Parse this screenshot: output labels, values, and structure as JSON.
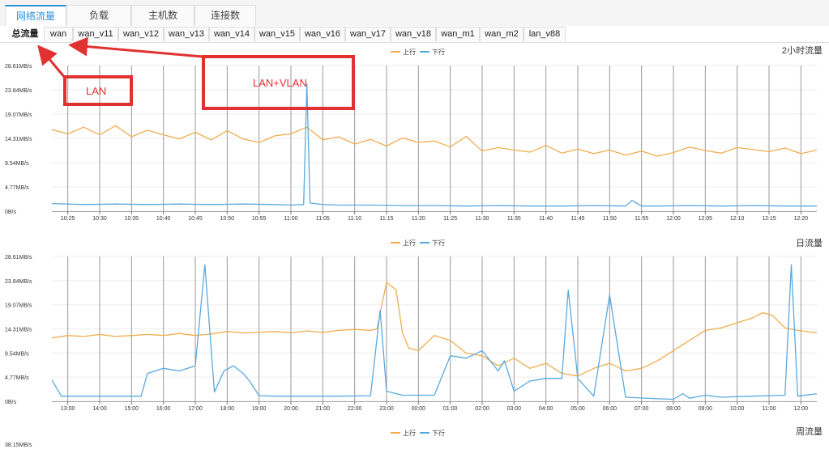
{
  "top_tabs": [
    "网络流量",
    "负载",
    "主机数",
    "连接数"
  ],
  "sub_tabs": [
    "总流量",
    "wan",
    "wan_v11",
    "wan_v12",
    "wan_v13",
    "wan_v14",
    "wan_v15",
    "wan_v16",
    "wan_v17",
    "wan_v18",
    "wan_m1",
    "wan_m2",
    "lan_v88"
  ],
  "annotations": {
    "lan_label": "LAN",
    "lan_vlan_label": "LAN+VLAN"
  },
  "legend": {
    "up": "上行",
    "down": "下行"
  },
  "colors": {
    "up": "#f0ad4e",
    "down": "#5aa9de",
    "active_tab": "#2b8fd6",
    "annotation": "#e23131",
    "grid": "#999999"
  },
  "chart_data": [
    {
      "type": "line",
      "title": "2小时流量",
      "y_ticks": [
        "28.61MB/s",
        "23.84MB/s",
        "19.07MB/s",
        "14.31MB/s",
        "9.54MB/s",
        "4.77MB/s",
        "0B/s"
      ],
      "y_tick_values": [
        28.61,
        23.84,
        19.07,
        14.31,
        9.54,
        4.77,
        0
      ],
      "ylim": [
        0,
        28.61
      ],
      "x_ticks": [
        "10:25",
        "10:30",
        "10:35",
        "10:40",
        "10:45",
        "10:50",
        "10:55",
        "11:00",
        "11:05",
        "11:10",
        "11:15",
        "11:20",
        "11:25",
        "11:30",
        "11:35",
        "11:40",
        "11:45",
        "11:50",
        "11:55",
        "12:00",
        "12:05",
        "12:10",
        "12:15",
        "12:20"
      ],
      "x_range": [
        0,
        24
      ],
      "series": [
        {
          "name": "上行",
          "x": [
            0,
            0.5,
            1,
            1.5,
            2,
            2.5,
            3,
            3.5,
            4,
            4.5,
            5,
            5.5,
            6,
            6.5,
            7,
            7.5,
            8,
            8.5,
            9,
            9.5,
            10,
            10.5,
            11,
            11.5,
            12,
            12.5,
            13,
            13.5,
            14,
            14.5,
            15,
            15.5,
            16,
            16.5,
            17,
            17.5,
            18,
            18.5,
            19,
            19.5,
            20,
            20.5,
            21,
            21.5,
            22,
            22.5,
            23,
            23.5,
            24
          ],
          "values": [
            16.0,
            15.2,
            16.5,
            15.0,
            16.8,
            14.6,
            15.9,
            15.0,
            14.2,
            15.5,
            14.0,
            15.8,
            14.2,
            13.5,
            14.8,
            15.2,
            16.5,
            14.0,
            14.6,
            13.2,
            14.1,
            12.8,
            14.4,
            13.5,
            13.8,
            12.6,
            14.7,
            11.8,
            12.5,
            12.0,
            11.6,
            12.9,
            11.4,
            12.2,
            11.3,
            12.0,
            11.0,
            11.8,
            10.8,
            11.5,
            12.6,
            11.9,
            11.4,
            12.5,
            12.1,
            11.7,
            12.4,
            11.3,
            12.0
          ]
        },
        {
          "name": "下行",
          "x": [
            0,
            1,
            2,
            3,
            4,
            5,
            6,
            7,
            7.5,
            7.9,
            8.0,
            8.1,
            8.5,
            9,
            10,
            11,
            12,
            13,
            14,
            15,
            16,
            17,
            18,
            18.2,
            18.5,
            19,
            20,
            21,
            22,
            23,
            24
          ],
          "values": [
            1.5,
            1.3,
            1.4,
            1.3,
            1.4,
            1.3,
            1.4,
            1.3,
            1.2,
            1.3,
            25.0,
            1.6,
            1.3,
            1.2,
            1.2,
            1.1,
            1.1,
            1.0,
            1.1,
            1.0,
            1.0,
            1.1,
            1.0,
            2.1,
            1.0,
            1.0,
            1.1,
            1.0,
            1.1,
            1.0,
            1.0
          ]
        }
      ]
    },
    {
      "type": "line",
      "title": "日流量",
      "y_ticks": [
        "28.61MB/s",
        "23.84MB/s",
        "19.07MB/s",
        "14.31MB/s",
        "9.54MB/s",
        "4.77MB/s",
        "0B/s"
      ],
      "y_tick_values": [
        28.61,
        23.84,
        19.07,
        14.31,
        9.54,
        4.77,
        0
      ],
      "ylim": [
        0,
        28.61
      ],
      "x_ticks": [
        "13:00",
        "14:00",
        "15:00",
        "16:00",
        "17:00",
        "18:00",
        "19:00",
        "20:00",
        "21:00",
        "22:00",
        "23:00",
        "00:00",
        "01:00",
        "02:00",
        "03:00",
        "04:00",
        "05:00",
        "06:00",
        "07:00",
        "08:00",
        "09:00",
        "10:00",
        "11:00",
        "12:00"
      ],
      "x_range": [
        0,
        24
      ],
      "series": [
        {
          "name": "上行",
          "x": [
            0,
            0.5,
            1,
            1.5,
            2,
            2.5,
            3,
            3.5,
            4,
            4.5,
            5,
            5.5,
            6,
            6.5,
            7,
            7.5,
            8,
            8.5,
            9,
            9.5,
            10,
            10.2,
            10.5,
            10.8,
            11,
            11.2,
            11.5,
            12,
            12.5,
            13,
            13.5,
            14,
            14.5,
            15,
            15.5,
            16,
            16.5,
            17,
            17.5,
            18,
            18.5,
            19,
            19.5,
            20,
            20.5,
            21,
            21.5,
            22,
            22.3,
            22.6,
            23,
            23.4,
            24
          ],
          "values": [
            12.5,
            13.0,
            12.8,
            13.2,
            12.8,
            13.0,
            13.2,
            13.0,
            13.4,
            13.0,
            13.3,
            13.8,
            13.5,
            13.6,
            13.8,
            13.5,
            13.9,
            13.6,
            14.0,
            14.2,
            14.0,
            14.3,
            23.5,
            22.0,
            13.5,
            10.5,
            10.0,
            13.0,
            12.0,
            9.5,
            9.0,
            7.0,
            8.5,
            6.5,
            7.5,
            5.5,
            5.0,
            6.5,
            7.5,
            6.0,
            6.5,
            8.0,
            10.0,
            12.0,
            14.0,
            14.5,
            15.5,
            16.5,
            17.5,
            17.0,
            14.5,
            14.0,
            13.5
          ]
        },
        {
          "name": "下行",
          "x": [
            0,
            0.3,
            1,
            2,
            2.8,
            3,
            3.5,
            4,
            4.5,
            4.8,
            5.1,
            5.4,
            5.7,
            6,
            6.2,
            6.5,
            7,
            7.5,
            8,
            9,
            10,
            10.3,
            10.5,
            10.8,
            11,
            11.5,
            12,
            12.5,
            13,
            13.5,
            14,
            14.2,
            14.5,
            15,
            15.5,
            15.8,
            16,
            16.2,
            16.5,
            17,
            17.5,
            18,
            19,
            19.5,
            19.8,
            20,
            20.5,
            21,
            22,
            23,
            23.2,
            23.4,
            24
          ],
          "values": [
            4.2,
            1.0,
            1.0,
            1.0,
            1.0,
            5.5,
            6.5,
            6.0,
            7.0,
            27.0,
            1.8,
            6.0,
            7.0,
            5.5,
            4.0,
            1.1,
            1.0,
            1.0,
            1.0,
            1.0,
            1.1,
            18.0,
            2.0,
            1.5,
            1.2,
            1.2,
            1.2,
            9.0,
            8.5,
            10.0,
            6.0,
            8.0,
            2.0,
            4.0,
            4.5,
            4.5,
            4.5,
            22.0,
            4.5,
            1.0,
            21.0,
            0.8,
            0.5,
            0.4,
            1.5,
            0.6,
            1.2,
            0.8,
            1.0,
            1.2,
            27.0,
            1.0,
            1.5
          ]
        }
      ]
    },
    {
      "type": "line",
      "title": "周流量",
      "y_ticks": [
        "38.15MB/s"
      ],
      "y_tick_values": [
        38.15
      ]
    }
  ]
}
